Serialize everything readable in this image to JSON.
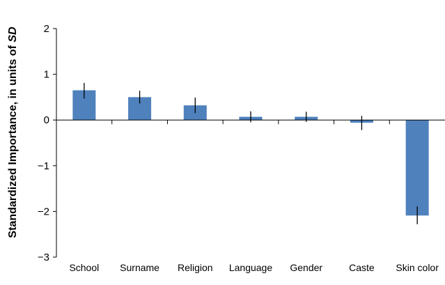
{
  "chart_data": {
    "type": "bar",
    "ylabel": "Standardized Importance, in units of SD",
    "ylabel_parts": [
      "Standardized Importance, in units of ",
      "SD"
    ],
    "categories": [
      "School",
      "Surname",
      "Religion",
      "Language",
      "Gender",
      "Caste",
      "Skin color"
    ],
    "values": [
      0.65,
      0.5,
      0.32,
      0.07,
      0.07,
      -0.06,
      -2.09
    ],
    "error_bars": [
      [
        0.47,
        0.81
      ],
      [
        0.36,
        0.64
      ],
      [
        0.15,
        0.49
      ],
      [
        -0.05,
        0.19
      ],
      [
        -0.04,
        0.18
      ],
      [
        -0.22,
        0.09
      ],
      [
        -2.28,
        -1.89
      ]
    ],
    "ylim": [
      -3,
      2
    ],
    "yticks": [
      2,
      1,
      0,
      -1,
      -2,
      -3
    ],
    "ytick_labels": [
      "2",
      "1",
      "0",
      "−1",
      "−2",
      "−3"
    ],
    "grid": false,
    "legend": "none",
    "colors": {
      "bar": "#4f81bd",
      "axis": "#000000",
      "error_bar": "#000000"
    }
  }
}
